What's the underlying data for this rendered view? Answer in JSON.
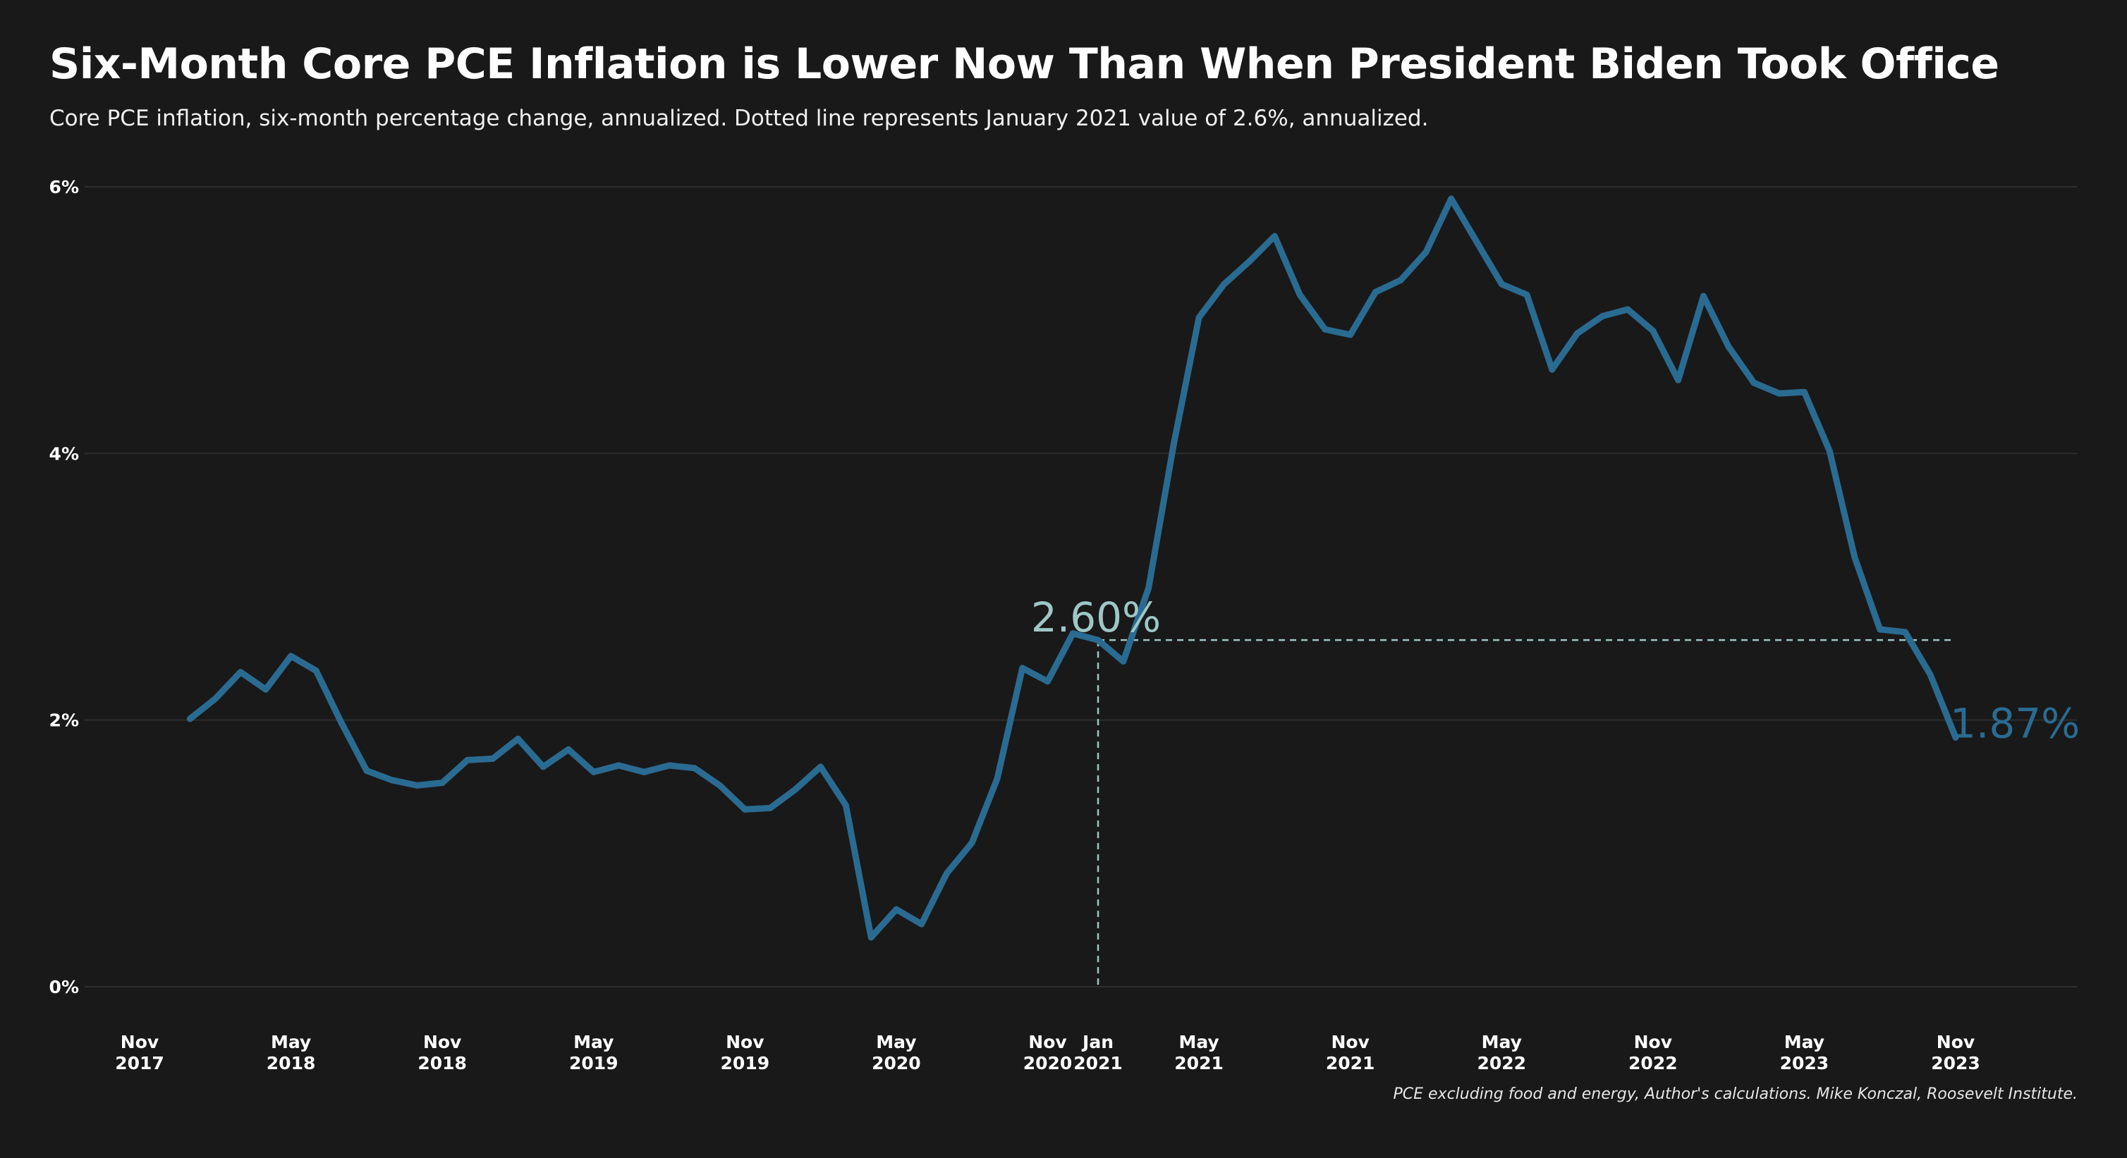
{
  "header": {
    "title": "Six-Month Core PCE Inflation is Lower Now Than When President Biden Took Office",
    "subtitle": "Core PCE inflation, six-month percentage change, annualized. Dotted line represents January 2021 value of 2.6%, annualized."
  },
  "footer": {
    "source": "PCE excluding food and energy, Author's calculations. Mike Konczal, Roosevelt Institute."
  },
  "colors": {
    "background": "#191919",
    "line": "#2a6b92",
    "reference": "#9ec7c6",
    "grid": "#2e2e2e"
  },
  "chart_data": {
    "type": "line",
    "title": "Six-Month Core PCE Inflation is Lower Now Than When President Biden Took Office",
    "xlabel": "",
    "ylabel": "",
    "x_range": [
      "2017-11",
      "2024-04"
    ],
    "ylim": [
      0,
      6
    ],
    "grid": "horizontal",
    "y_ticks": [
      {
        "value": 0,
        "label": "0%"
      },
      {
        "value": 2,
        "label": "2%"
      },
      {
        "value": 4,
        "label": "4%"
      },
      {
        "value": 6,
        "label": "6%"
      }
    ],
    "x_ticks": [
      {
        "month": "2017-11",
        "line1": "Nov",
        "line2": "2017"
      },
      {
        "month": "2018-05",
        "line1": "May",
        "line2": "2018"
      },
      {
        "month": "2018-11",
        "line1": "Nov",
        "line2": "2018"
      },
      {
        "month": "2019-05",
        "line1": "May",
        "line2": "2019"
      },
      {
        "month": "2019-11",
        "line1": "Nov",
        "line2": "2019"
      },
      {
        "month": "2020-05",
        "line1": "May",
        "line2": "2020"
      },
      {
        "month": "2020-11",
        "line1": "Nov",
        "line2": "2020"
      },
      {
        "month": "2021-01",
        "line1": "Jan",
        "line2": "2021"
      },
      {
        "month": "2021-05",
        "line1": "May",
        "line2": "2021"
      },
      {
        "month": "2021-11",
        "line1": "Nov",
        "line2": "2021"
      },
      {
        "month": "2022-05",
        "line1": "May",
        "line2": "2022"
      },
      {
        "month": "2022-11",
        "line1": "Nov",
        "line2": "2022"
      },
      {
        "month": "2023-05",
        "line1": "May",
        "line2": "2023"
      },
      {
        "month": "2023-11",
        "line1": "Nov",
        "line2": "2023"
      }
    ],
    "reference": {
      "month": "2021-01",
      "value": 2.6,
      "label": "2.60%",
      "style": "dashed"
    },
    "end_label": {
      "month": "2023-11",
      "value": 1.87,
      "label": "1.87%"
    },
    "series": [
      {
        "values": [
          {
            "month": "2018-01",
            "value": 2.01
          },
          {
            "month": "2018-02",
            "value": 2.16
          },
          {
            "month": "2018-03",
            "value": 2.36
          },
          {
            "month": "2018-04",
            "value": 2.23
          },
          {
            "month": "2018-05",
            "value": 2.48
          },
          {
            "month": "2018-06",
            "value": 2.37
          },
          {
            "month": "2018-07",
            "value": 1.98
          },
          {
            "month": "2018-08",
            "value": 1.62
          },
          {
            "month": "2018-09",
            "value": 1.55
          },
          {
            "month": "2018-10",
            "value": 1.51
          },
          {
            "month": "2018-11",
            "value": 1.53
          },
          {
            "month": "2018-12",
            "value": 1.7
          },
          {
            "month": "2019-01",
            "value": 1.71
          },
          {
            "month": "2019-02",
            "value": 1.86
          },
          {
            "month": "2019-03",
            "value": 1.65
          },
          {
            "month": "2019-04",
            "value": 1.78
          },
          {
            "month": "2019-05",
            "value": 1.61
          },
          {
            "month": "2019-06",
            "value": 1.66
          },
          {
            "month": "2019-07",
            "value": 1.61
          },
          {
            "month": "2019-08",
            "value": 1.66
          },
          {
            "month": "2019-09",
            "value": 1.64
          },
          {
            "month": "2019-10",
            "value": 1.51
          },
          {
            "month": "2019-11",
            "value": 1.33
          },
          {
            "month": "2019-12",
            "value": 1.34
          },
          {
            "month": "2020-01",
            "value": 1.48
          },
          {
            "month": "2020-02",
            "value": 1.65
          },
          {
            "month": "2020-03",
            "value": 1.36
          },
          {
            "month": "2020-04",
            "value": 0.37
          },
          {
            "month": "2020-05",
            "value": 0.58
          },
          {
            "month": "2020-06",
            "value": 0.47
          },
          {
            "month": "2020-07",
            "value": 0.85
          },
          {
            "month": "2020-08",
            "value": 1.08
          },
          {
            "month": "2020-09",
            "value": 1.56
          },
          {
            "month": "2020-10",
            "value": 2.39
          },
          {
            "month": "2020-11",
            "value": 2.29
          },
          {
            "month": "2020-12",
            "value": 2.65
          },
          {
            "month": "2021-01",
            "value": 2.6
          },
          {
            "month": "2021-02",
            "value": 2.44
          },
          {
            "month": "2021-03",
            "value": 2.99
          },
          {
            "month": "2021-04",
            "value": 4.07
          },
          {
            "month": "2021-05",
            "value": 5.02
          },
          {
            "month": "2021-06",
            "value": 5.27
          },
          {
            "month": "2021-07",
            "value": 5.44
          },
          {
            "month": "2021-08",
            "value": 5.63
          },
          {
            "month": "2021-09",
            "value": 5.19
          },
          {
            "month": "2021-10",
            "value": 4.93
          },
          {
            "month": "2021-11",
            "value": 4.89
          },
          {
            "month": "2021-12",
            "value": 5.21
          },
          {
            "month": "2022-01",
            "value": 5.3
          },
          {
            "month": "2022-02",
            "value": 5.51
          },
          {
            "month": "2022-03",
            "value": 5.91
          },
          {
            "month": "2022-04",
            "value": 5.59
          },
          {
            "month": "2022-05",
            "value": 5.27
          },
          {
            "month": "2022-06",
            "value": 5.19
          },
          {
            "month": "2022-07",
            "value": 4.63
          },
          {
            "month": "2022-08",
            "value": 4.9
          },
          {
            "month": "2022-09",
            "value": 5.03
          },
          {
            "month": "2022-10",
            "value": 5.08
          },
          {
            "month": "2022-11",
            "value": 4.92
          },
          {
            "month": "2022-12",
            "value": 4.55
          },
          {
            "month": "2023-01",
            "value": 5.18
          },
          {
            "month": "2023-02",
            "value": 4.8
          },
          {
            "month": "2023-03",
            "value": 4.53
          },
          {
            "month": "2023-04",
            "value": 4.45
          },
          {
            "month": "2023-05",
            "value": 4.46
          },
          {
            "month": "2023-06",
            "value": 4.02
          },
          {
            "month": "2023-07",
            "value": 3.22
          },
          {
            "month": "2023-08",
            "value": 2.68
          },
          {
            "month": "2023-09",
            "value": 2.66
          },
          {
            "month": "2023-10",
            "value": 2.34
          },
          {
            "month": "2023-11",
            "value": 1.87
          }
        ]
      }
    ]
  }
}
